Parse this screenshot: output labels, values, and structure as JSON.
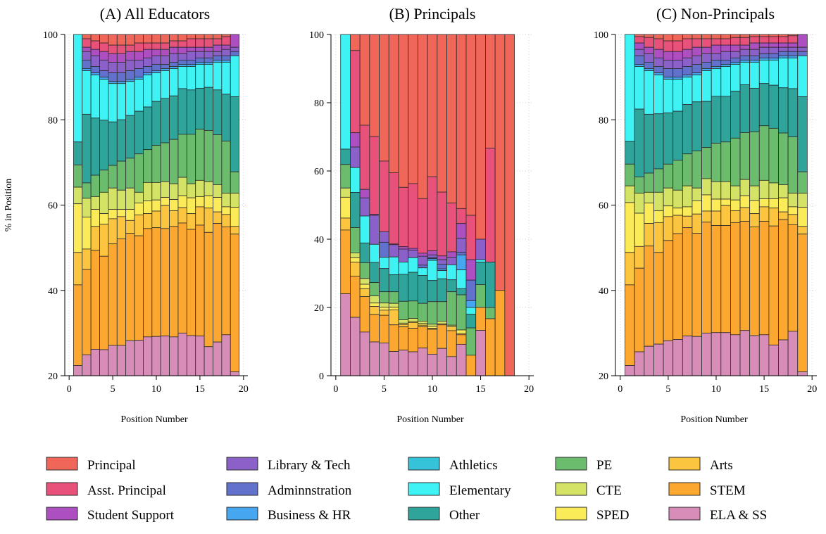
{
  "colors": {
    "Principal": "#f0675a",
    "Asst. Principal": "#e8527a",
    "Student Support": "#ad4fc0",
    "Library & Tech": "#8b60c8",
    "Adminnstration": "#6271cc",
    "Business & HR": "#46a6f0",
    "Athletics": "#34c3d8",
    "Elementary": "#3ff2f4",
    "Other": "#2fa49a",
    "PE": "#6bbd6d",
    "CTE": "#d4e266",
    "SPED": "#fbeb58",
    "Arts": "#fbc53f",
    "STEM": "#fba730",
    "ELA & SS": "#d88db8"
  },
  "legend": {
    "entries": [
      "Principal",
      "Asst. Principal",
      "Student Support",
      "Library & Tech",
      "Adminnstration",
      "Business & HR",
      "Athletics",
      "Elementary",
      "Other",
      "PE",
      "CTE",
      "SPED",
      "Arts",
      "STEM",
      "ELA & SS"
    ]
  },
  "chart_data": [
    {
      "type": "bar",
      "stacked": true,
      "title": "(A) All Educators",
      "xlabel": "Position Number",
      "ylabel": "% in Position",
      "xlim": [
        -0.5,
        20.5
      ],
      "ylim": [
        20,
        100
      ],
      "xticks": [
        0,
        5,
        10,
        15,
        20
      ],
      "yticks": [
        20,
        40,
        60,
        80,
        100
      ],
      "categories": [
        1,
        2,
        3,
        4,
        5,
        6,
        7,
        8,
        9,
        10,
        11,
        12,
        13,
        14,
        15,
        16,
        17,
        18,
        19
      ],
      "tops": [
        [
          100,
          100,
          100,
          100,
          100,
          100,
          100,
          100,
          100,
          100,
          100,
          100,
          100,
          100,
          100,
          100,
          100,
          100,
          100
        ],
        [
          100,
          99,
          98.5,
          98,
          97.5,
          97.5,
          97.5,
          98,
          98,
          98,
          98,
          98.5,
          98.5,
          99,
          99,
          99,
          99,
          99.5,
          100
        ],
        [
          100,
          97,
          96.5,
          96,
          95.5,
          95.5,
          96,
          96,
          96.5,
          96.5,
          96.5,
          97,
          97,
          97,
          97,
          97,
          97.5,
          97.5,
          100
        ],
        [
          100,
          96,
          95,
          94,
          93.5,
          93.5,
          94,
          94,
          94.5,
          95,
          95,
          95.5,
          95.5,
          96,
          96,
          96,
          96,
          96.5,
          97
        ],
        [
          100,
          94,
          92.5,
          91.5,
          91,
          91,
          91.5,
          92,
          92.5,
          93,
          93,
          93.5,
          94,
          94,
          94.5,
          94.5,
          95,
          95,
          96
        ],
        [
          100,
          92,
          91,
          90,
          89,
          89,
          89.5,
          90,
          91,
          91.5,
          92,
          92.5,
          93,
          93,
          93.5,
          93.5,
          94,
          94,
          95
        ],
        [
          100,
          91.5,
          90.5,
          89.5,
          88.5,
          88.5,
          89,
          89.5,
          90.5,
          91,
          91.5,
          92,
          92.5,
          92.5,
          93,
          93,
          93.5,
          93.5,
          95
        ],
        [
          100,
          91.5,
          90.5,
          89.5,
          88.5,
          88.5,
          89,
          89.5,
          90.5,
          91,
          91.5,
          92,
          92.5,
          92.5,
          93,
          93,
          93.5,
          93.5,
          95
        ],
        [
          74.8,
          81.3,
          80.4,
          79.9,
          79.5,
          80,
          81,
          82,
          83,
          84.3,
          85,
          85.6,
          87.3,
          87,
          87.4,
          87.6,
          87,
          86,
          85.4
        ],
        [
          69.4,
          65.2,
          67,
          68.2,
          69.3,
          70.3,
          71,
          72,
          73,
          74,
          74.6,
          75.4,
          76.6,
          76.6,
          77.8,
          77.5,
          76.5,
          75,
          67.8
        ],
        [
          64.2,
          61.6,
          62,
          63,
          64,
          63.5,
          64,
          63,
          65.3,
          65.3,
          65.5,
          65,
          66.5,
          65,
          65.8,
          65.5,
          64.8,
          62.8,
          62.8
        ],
        [
          60.3,
          57.2,
          59,
          58,
          59,
          59,
          59,
          60.5,
          61,
          61.2,
          61.8,
          61.3,
          62.2,
          61.7,
          62,
          62.2,
          61.8,
          59.6,
          59.5
        ],
        [
          48.9,
          49.7,
          55,
          55.5,
          56.8,
          57.3,
          56.4,
          57.7,
          58,
          58.6,
          59.9,
          58.7,
          59.4,
          58,
          59.6,
          59.3,
          58.4,
          57.8,
          55
        ],
        [
          41.3,
          44.9,
          49.4,
          48,
          50.9,
          52.1,
          53.4,
          52.8,
          54.5,
          54.7,
          54.5,
          55,
          55.8,
          54.3,
          55.3,
          53.6,
          55.7,
          54.9,
          53.2
        ],
        [
          22.4,
          24.9,
          26.2,
          26.1,
          27.1,
          27.1,
          28.2,
          28.3,
          29.1,
          29.2,
          29.3,
          29.1,
          30,
          29.4,
          29.3,
          26.8,
          27.9,
          29.6,
          20.9
        ]
      ]
    },
    {
      "type": "bar",
      "stacked": true,
      "title": "(B) Principals",
      "xlabel": "Position Number",
      "ylabel": "",
      "xlim": [
        -0.5,
        20.5
      ],
      "ylim": [
        0,
        100
      ],
      "xticks": [
        0,
        5,
        10,
        15,
        20
      ],
      "yticks": [
        0,
        20,
        40,
        60,
        80,
        100
      ],
      "categories": [
        1,
        2,
        3,
        4,
        5,
        6,
        7,
        8,
        9,
        10,
        11,
        12,
        13,
        14,
        15,
        16,
        17,
        18
      ],
      "tops": [
        [
          100,
          100,
          100,
          100,
          100,
          100,
          100,
          100,
          100,
          100,
          100,
          100,
          100,
          100,
          100,
          100,
          100,
          100
        ],
        [
          100,
          95.3,
          73.4,
          70.1,
          62.9,
          59.5,
          55.2,
          56.3,
          51.9,
          58.3,
          53.8,
          50.6,
          49,
          47,
          40,
          66.7,
          25,
          0
        ],
        [
          100,
          71.2,
          54.6,
          47.3,
          42.2,
          38.6,
          37.8,
          37.3,
          35.9,
          36.6,
          35.1,
          36.3,
          44.6,
          34,
          40,
          33.3,
          25,
          0
        ],
        [
          100,
          67,
          52.1,
          47,
          42.2,
          38.4,
          37.1,
          36.8,
          35,
          35.4,
          34,
          34.7,
          40.3,
          28,
          40,
          33.3,
          25,
          0
        ],
        [
          100,
          61,
          46.8,
          38.5,
          39.1,
          34.8,
          33.3,
          34.6,
          32.4,
          34.6,
          32.7,
          32.5,
          36.2,
          28,
          34,
          33.3,
          25,
          0
        ],
        [
          100,
          61,
          46.8,
          38.5,
          34.7,
          34.8,
          33.3,
          34.6,
          31.6,
          34.3,
          31.3,
          32.5,
          35.4,
          22,
          34,
          33.3,
          25,
          0
        ],
        [
          100,
          61,
          46.8,
          38.5,
          34.7,
          34.8,
          33.3,
          34.6,
          31.6,
          33.8,
          30.8,
          32.5,
          31,
          20,
          34,
          33.3,
          25,
          0
        ],
        [
          100,
          61,
          46.8,
          38.5,
          34.7,
          34.8,
          33.3,
          34.6,
          31.6,
          33.8,
          30.8,
          32.5,
          31,
          20,
          34,
          33.3,
          25,
          0
        ],
        [
          66.4,
          53.7,
          38.9,
          33.2,
          31.4,
          29.6,
          29.7,
          30.3,
          29.4,
          27.9,
          28.4,
          28.1,
          25.5,
          18,
          33.3,
          33.3,
          25,
          0
        ],
        [
          61.9,
          43.4,
          33.1,
          27.3,
          24.6,
          24.6,
          21.8,
          21.9,
          21.2,
          21.7,
          21.7,
          24.6,
          23.7,
          14,
          26.7,
          20,
          25,
          0
        ],
        [
          55,
          36,
          28.5,
          23.4,
          21.3,
          21.2,
          16.4,
          16.8,
          16,
          15.1,
          16,
          14.8,
          13.4,
          6,
          20,
          16.7,
          25,
          0
        ],
        [
          52.3,
          34.6,
          26.8,
          21.3,
          20.1,
          20.1,
          15.4,
          16,
          15.3,
          14.5,
          15.2,
          14.4,
          13.4,
          6,
          20,
          16.7,
          25,
          0
        ],
        [
          46.2,
          33.3,
          25.5,
          20.3,
          19.2,
          19.3,
          15,
          15.6,
          14.8,
          13.9,
          15.2,
          14.4,
          12.4,
          6,
          20,
          16.7,
          25,
          0
        ],
        [
          42.7,
          29.2,
          23.2,
          17.9,
          17.7,
          14.9,
          14.3,
          13.9,
          14.3,
          13.6,
          14.9,
          13.2,
          12,
          6,
          20,
          16.7,
          25,
          0
        ],
        [
          24,
          17.1,
          12.8,
          9.9,
          9.6,
          7.1,
          7.5,
          7,
          8.1,
          6.3,
          8,
          5.6,
          9.2,
          0,
          13.3,
          0,
          0,
          0
        ]
      ]
    },
    {
      "type": "bar",
      "stacked": true,
      "title": "(C) Non-Principals",
      "xlabel": "Position Number",
      "ylabel": "",
      "xlim": [
        -0.5,
        20.5
      ],
      "ylim": [
        20,
        100
      ],
      "xticks": [
        0,
        5,
        10,
        15,
        20
      ],
      "yticks": [
        20,
        40,
        60,
        80,
        100
      ],
      "categories": [
        1,
        2,
        3,
        4,
        5,
        6,
        7,
        8,
        9,
        10,
        11,
        12,
        13,
        14,
        15,
        16,
        17,
        18,
        19
      ],
      "tops": [
        [
          100,
          100,
          100,
          100,
          100,
          100,
          100,
          100,
          100,
          100,
          100,
          100,
          100,
          100,
          100,
          100,
          100,
          100,
          100
        ],
        [
          100,
          99.5,
          99.3,
          99,
          98.5,
          98.5,
          99,
          99,
          99,
          99,
          99,
          99.3,
          99.3,
          99.5,
          99.5,
          99.5,
          99.5,
          99.7,
          100
        ],
        [
          100,
          98,
          97,
          96.5,
          96,
          96,
          96.5,
          97,
          97,
          97.5,
          97.5,
          97.5,
          97.5,
          98,
          98,
          98,
          98,
          98,
          100
        ],
        [
          100,
          96.5,
          95.5,
          94.5,
          94,
          94,
          94.5,
          95,
          95.5,
          95.5,
          96,
          96,
          96.5,
          96.5,
          97,
          97,
          97,
          97,
          97
        ],
        [
          100,
          95,
          93.5,
          92.5,
          92,
          92,
          92.5,
          93,
          93.5,
          94,
          94,
          94.5,
          95,
          95,
          95.5,
          95.5,
          96,
          96,
          96
        ],
        [
          100,
          93,
          92,
          91,
          90,
          90,
          90.5,
          91,
          92,
          92.5,
          93,
          93.5,
          94,
          94,
          94.5,
          94.5,
          95,
          95,
          95
        ],
        [
          100,
          92.5,
          91.5,
          90.5,
          89.5,
          89.5,
          90,
          90.5,
          91.5,
          92,
          92.5,
          93,
          93.5,
          93.5,
          94,
          94,
          94.5,
          94.5,
          95
        ],
        [
          100,
          92.5,
          91.5,
          90.5,
          89.5,
          89.5,
          90,
          90.5,
          91.5,
          92,
          92.5,
          93,
          93.5,
          93.5,
          94,
          94,
          94.5,
          94.5,
          95
        ],
        [
          74.9,
          82.5,
          81.3,
          81.4,
          81.6,
          82,
          83.6,
          84.2,
          84.3,
          85.5,
          85.5,
          86.7,
          88.2,
          87.4,
          88.5,
          88.1,
          87.5,
          87.3,
          85.4
        ],
        [
          69.6,
          66.6,
          67.5,
          68.5,
          69.6,
          70.5,
          72,
          72.7,
          73.5,
          74.5,
          74.8,
          75.7,
          77,
          77.2,
          78.6,
          78,
          76.9,
          76,
          67.8
        ],
        [
          64.5,
          62.8,
          63,
          63,
          64,
          63.5,
          64.5,
          64,
          66.2,
          65.5,
          65.5,
          64.5,
          66,
          64.5,
          65.8,
          65.2,
          64.8,
          62.8,
          62.8
        ],
        [
          60.6,
          58.1,
          60.5,
          58.7,
          59.8,
          59.3,
          59.6,
          61,
          62.4,
          61.4,
          61.4,
          61.2,
          62.2,
          61.1,
          61.5,
          61.5,
          61.7,
          59.6,
          59.5
        ],
        [
          48.9,
          50.3,
          55.7,
          55.9,
          57.3,
          57.6,
          57.4,
          57.9,
          58.6,
          58.6,
          59.9,
          58.7,
          59.4,
          58,
          59.6,
          59.3,
          58.4,
          57.8,
          55
        ],
        [
          41.3,
          45.2,
          50.4,
          48.9,
          51.7,
          53.3,
          54.7,
          53.4,
          56,
          55.2,
          55.2,
          55.9,
          56.2,
          54.9,
          56.2,
          55.1,
          56.6,
          55.4,
          53.2
        ],
        [
          22.4,
          25.6,
          26.9,
          27.4,
          28.2,
          28.5,
          29.3,
          29.2,
          30,
          30.1,
          30.1,
          29.6,
          30.6,
          29.4,
          29.6,
          27.2,
          28.4,
          30.4,
          20.9
        ]
      ]
    }
  ]
}
